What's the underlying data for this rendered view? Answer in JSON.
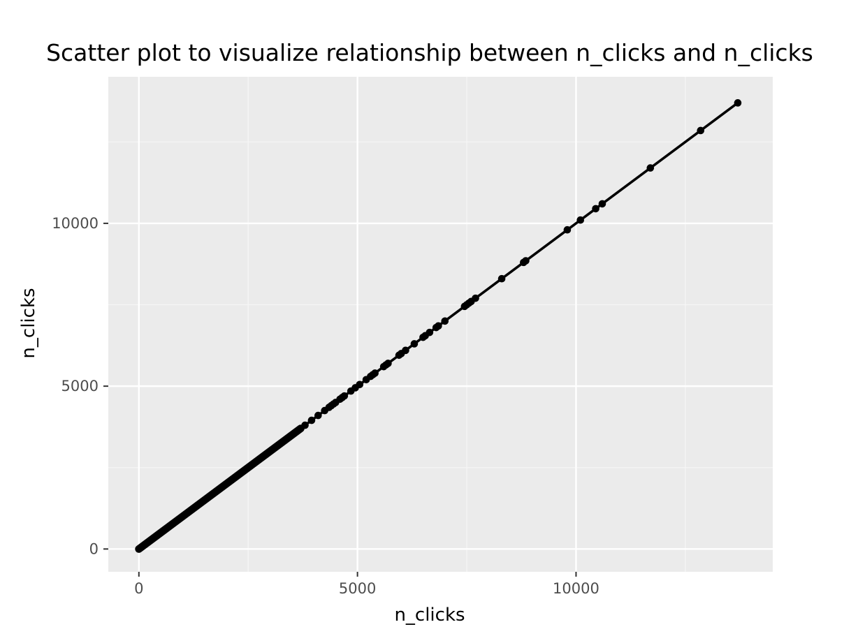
{
  "chart_data": {
    "type": "scatter",
    "title": "Scatter plot to visualize relationship between n_clicks and n_clicks",
    "xlabel": "n_clicks",
    "ylabel": "n_clicks",
    "xlim": [
      -700,
      14500
    ],
    "ylim": [
      -700,
      14500
    ],
    "xticks": [
      0,
      5000,
      10000
    ],
    "xtick_labels": [
      "0",
      "5000",
      "10000"
    ],
    "yticks": [
      0,
      5000,
      10000
    ],
    "ytick_labels": [
      "0",
      "5000",
      "10000"
    ],
    "grid": true,
    "legend": "none",
    "trend_line": {
      "type": "linear",
      "slope": 1,
      "intercept": 0,
      "x_range": [
        0,
        13700
      ]
    },
    "dense_run": {
      "from": 0,
      "to": 3700,
      "description": "continuous run of overlapping points along y = x"
    },
    "series": [
      {
        "x": [
          3800,
          3950,
          4100,
          4250,
          4350,
          4400,
          4450,
          4500,
          4600,
          4650,
          4700,
          4850,
          4950,
          5050,
          5200,
          5300,
          5350,
          5400,
          5600,
          5650,
          5700,
          5950,
          6000,
          6100,
          6300,
          6500,
          6550,
          6650,
          6800,
          6850,
          7000,
          7450,
          7500,
          7550,
          7600,
          7700,
          8300,
          8800,
          8850,
          9800,
          10100,
          10450,
          10600,
          11700,
          12850,
          13700
        ],
        "y": [
          3800,
          3950,
          4100,
          4250,
          4350,
          4400,
          4450,
          4500,
          4600,
          4650,
          4700,
          4850,
          4950,
          5050,
          5200,
          5300,
          5350,
          5400,
          5600,
          5650,
          5700,
          5950,
          6000,
          6100,
          6300,
          6500,
          6550,
          6650,
          6800,
          6850,
          7000,
          7450,
          7500,
          7550,
          7600,
          7700,
          8300,
          8800,
          8850,
          9800,
          10100,
          10450,
          10600,
          11700,
          12850,
          13700
        ]
      }
    ]
  },
  "colors": {
    "panel_background": "#ebebeb",
    "grid_major": "#ffffff",
    "grid_minor": "#f6f6f6",
    "point": "#000000",
    "line": "#000000",
    "tick_text": "#4d4d4d",
    "tick_mark": "#333333"
  }
}
